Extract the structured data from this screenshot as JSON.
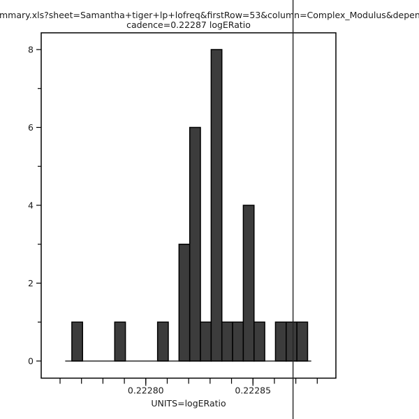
{
  "title": {
    "line1": "mmary.xls?sheet=Samantha+tiger+lp+lofreq&firstRow=53&column=Complex_Modulus&depende",
    "line2": "cadence=0.22287 logERatio"
  },
  "chart_data": {
    "type": "bar",
    "subtype": "histogram",
    "title": "cadence=0.22287 logERatio",
    "xlabel": "UNITS=logERatio",
    "ylabel": "",
    "xlim": [
      0.2227512,
      0.2228887
    ],
    "ylim": [
      -0.44,
      8.43
    ],
    "grid": false,
    "legend": null,
    "bin_start": 0.2227655,
    "bin_width": 5e-06,
    "counts": [
      1,
      0,
      0,
      0,
      1,
      0,
      0,
      0,
      1,
      0,
      3,
      6,
      1,
      8,
      1,
      1,
      4,
      1,
      0,
      1,
      1,
      1
    ],
    "baseline_range": [
      0.2227624,
      0.2228772
    ],
    "x_minor_ticks": [
      0.22276,
      0.22277,
      0.22278,
      0.22279,
      0.2228,
      0.22281,
      0.22282,
      0.22283,
      0.22284,
      0.22285,
      0.22286,
      0.22287,
      0.22288
    ],
    "x_major_ticks": [
      {
        "value": 0.2228,
        "label": "0.22280"
      },
      {
        "value": 0.22285,
        "label": "0.22285"
      }
    ],
    "y_major_ticks": [
      {
        "value": 0,
        "label": "0"
      },
      {
        "value": 2,
        "label": "2"
      },
      {
        "value": 4,
        "label": "4"
      },
      {
        "value": 6,
        "label": "6"
      },
      {
        "value": 8,
        "label": "8"
      }
    ],
    "y_minor_ticks": [
      1,
      3,
      5,
      7
    ],
    "vline_value": 0.2228687,
    "colors": {
      "bar_fill": "#3c3c3c",
      "bar_stroke": "#000000",
      "axis": "#000000",
      "text": "#1a1a1a",
      "marker_line": "#222222",
      "background": "#ffffff"
    }
  }
}
